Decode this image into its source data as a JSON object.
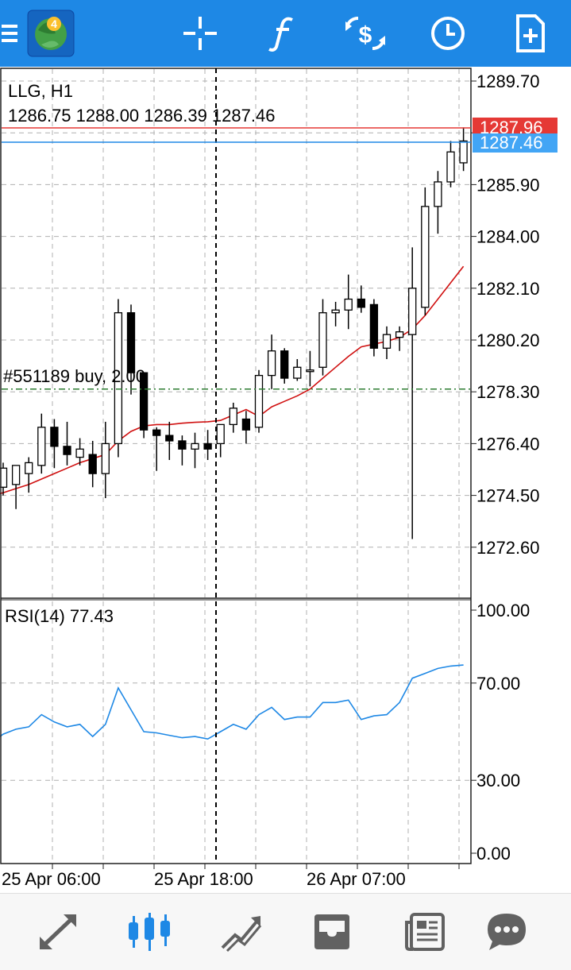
{
  "toolbar": {
    "menu_icon": "hamburger-menu-icon",
    "app_icon": "metatrader-4-logo",
    "icons": [
      "crosshair-icon",
      "indicators-function-icon",
      "symbol-switch-icon",
      "timeframe-clock-icon",
      "new-order-icon"
    ],
    "accent": "#1e88e5"
  },
  "chart": {
    "symbol_timeframe": "LLG, H1",
    "ohlc": "1286.75 1288.00 1286.39 1287.46",
    "bid_label": "1287.96",
    "ask_label": "1287.46",
    "order_label": "#551189 buy, 2.00",
    "rsi_label": "RSI(14) 77.43",
    "colors": {
      "bid_line": "#e53935",
      "ask_line": "#1e88e5",
      "ma_line": "#d01010",
      "rsi_line": "#1e88e5",
      "order_line": "#2e7d32",
      "grid": "#b0b0b0"
    }
  },
  "chart_data": [
    {
      "type": "candlestick",
      "title": "LLG, H1",
      "y_ticks": [
        "1289.70",
        "1287.80",
        "1285.90",
        "1284.00",
        "1282.10",
        "1280.20",
        "1278.30",
        "1276.40",
        "1274.50",
        "1272.60"
      ],
      "ylim": [
        1270.7,
        1290.4
      ],
      "x_ticks": [
        "25 Apr 06:00",
        "25 Apr 18:00",
        "26 Apr 07:00"
      ],
      "grid": true,
      "candles": [
        {
          "o": 1274.8,
          "h": 1275.7,
          "l": 1274.5,
          "c": 1275.5
        },
        {
          "o": 1274.9,
          "h": 1275.6,
          "l": 1274.0,
          "c": 1275.6
        },
        {
          "o": 1275.3,
          "h": 1275.9,
          "l": 1274.6,
          "c": 1275.7
        },
        {
          "o": 1275.6,
          "h": 1277.5,
          "l": 1275.3,
          "c": 1277.0
        },
        {
          "o": 1277.0,
          "h": 1277.3,
          "l": 1275.5,
          "c": 1276.3
        },
        {
          "o": 1276.3,
          "h": 1277.2,
          "l": 1275.6,
          "c": 1276.0
        },
        {
          "o": 1275.9,
          "h": 1276.6,
          "l": 1275.6,
          "c": 1276.2
        },
        {
          "o": 1276.0,
          "h": 1276.5,
          "l": 1274.8,
          "c": 1275.3
        },
        {
          "o": 1275.3,
          "h": 1277.2,
          "l": 1274.4,
          "c": 1276.4
        },
        {
          "o": 1276.4,
          "h": 1281.7,
          "l": 1275.9,
          "c": 1281.2
        },
        {
          "o": 1281.2,
          "h": 1281.5,
          "l": 1278.2,
          "c": 1279.0
        },
        {
          "o": 1279.0,
          "h": 1279.0,
          "l": 1276.6,
          "c": 1276.9
        },
        {
          "o": 1276.9,
          "h": 1277.0,
          "l": 1275.4,
          "c": 1276.7
        },
        {
          "o": 1276.7,
          "h": 1277.2,
          "l": 1275.8,
          "c": 1276.5
        },
        {
          "o": 1276.5,
          "h": 1276.7,
          "l": 1275.6,
          "c": 1276.2
        },
        {
          "o": 1276.2,
          "h": 1276.8,
          "l": 1275.5,
          "c": 1276.4
        },
        {
          "o": 1276.4,
          "h": 1276.9,
          "l": 1275.8,
          "c": 1276.2
        },
        {
          "o": 1276.4,
          "h": 1277.1,
          "l": 1275.9,
          "c": 1277.1
        },
        {
          "o": 1277.1,
          "h": 1277.9,
          "l": 1276.8,
          "c": 1277.7
        },
        {
          "o": 1277.3,
          "h": 1277.6,
          "l": 1276.4,
          "c": 1276.9
        },
        {
          "o": 1277.0,
          "h": 1279.1,
          "l": 1276.8,
          "c": 1278.9
        },
        {
          "o": 1278.9,
          "h": 1280.4,
          "l": 1278.4,
          "c": 1279.8
        },
        {
          "o": 1279.8,
          "h": 1279.9,
          "l": 1278.6,
          "c": 1278.8
        },
        {
          "o": 1278.8,
          "h": 1279.5,
          "l": 1278.7,
          "c": 1279.2
        },
        {
          "o": 1279.1,
          "h": 1279.8,
          "l": 1278.5,
          "c": 1279.1
        },
        {
          "o": 1279.2,
          "h": 1281.7,
          "l": 1278.9,
          "c": 1281.2
        },
        {
          "o": 1281.2,
          "h": 1281.6,
          "l": 1280.7,
          "c": 1281.3
        },
        {
          "o": 1281.3,
          "h": 1282.6,
          "l": 1280.6,
          "c": 1281.7
        },
        {
          "o": 1281.7,
          "h": 1282.2,
          "l": 1281.2,
          "c": 1281.4
        },
        {
          "o": 1281.5,
          "h": 1281.7,
          "l": 1279.6,
          "c": 1279.9
        },
        {
          "o": 1279.9,
          "h": 1280.7,
          "l": 1279.5,
          "c": 1280.4
        },
        {
          "o": 1280.3,
          "h": 1280.7,
          "l": 1279.8,
          "c": 1280.5
        },
        {
          "o": 1280.4,
          "h": 1283.6,
          "l": 1272.9,
          "c": 1282.1
        },
        {
          "o": 1281.4,
          "h": 1285.8,
          "l": 1281.1,
          "c": 1285.1
        },
        {
          "o": 1285.1,
          "h": 1286.4,
          "l": 1284.1,
          "c": 1286.0
        },
        {
          "o": 1286.0,
          "h": 1287.5,
          "l": 1285.8,
          "c": 1287.1
        },
        {
          "o": 1286.7,
          "h": 1288.0,
          "l": 1286.4,
          "c": 1287.5
        }
      ],
      "moving_average": [
        1274.6,
        1274.75,
        1274.9,
        1275.1,
        1275.3,
        1275.5,
        1275.7,
        1275.85,
        1276.0,
        1276.5,
        1276.85,
        1277.05,
        1277.1,
        1277.1,
        1277.15,
        1277.18,
        1277.2,
        1277.25,
        1277.45,
        1277.65,
        1277.4,
        1277.75,
        1277.95,
        1278.15,
        1278.4,
        1278.8,
        1279.2,
        1279.6,
        1279.95,
        1280.05,
        1280.15,
        1280.3,
        1280.6,
        1281.1,
        1281.7,
        1282.3,
        1282.9
      ],
      "current_prices": {
        "bid": 1287.96,
        "ask": 1287.46
      },
      "order_line": {
        "label": "#551189 buy, 2.00",
        "price": 1278.4
      }
    },
    {
      "type": "line",
      "title": "RSI(14) 77.43",
      "y_ticks": [
        "100.00",
        "70.00",
        "30.00",
        "0.00"
      ],
      "ylim": [
        0,
        100
      ],
      "grid": true,
      "series": [
        {
          "name": "RSI(14)",
          "values": [
            49,
            51,
            52,
            57,
            54,
            52,
            53,
            48,
            53,
            68,
            59,
            50,
            49.5,
            48.5,
            47.5,
            48,
            47,
            50,
            53,
            51,
            57,
            60,
            55,
            56,
            56,
            62,
            62,
            63,
            55,
            56.5,
            57,
            62,
            72,
            74,
            76,
            77,
            77.43
          ]
        }
      ]
    }
  ],
  "bottom_nav": {
    "icons": [
      "quotes-arrows-icon",
      "chart-candles-icon",
      "trade-icon",
      "history-inbox-icon",
      "news-icon",
      "chat-icon"
    ],
    "active": "chart-candles-icon",
    "active_color": "#1e88e5",
    "inactive_color": "#616161"
  }
}
